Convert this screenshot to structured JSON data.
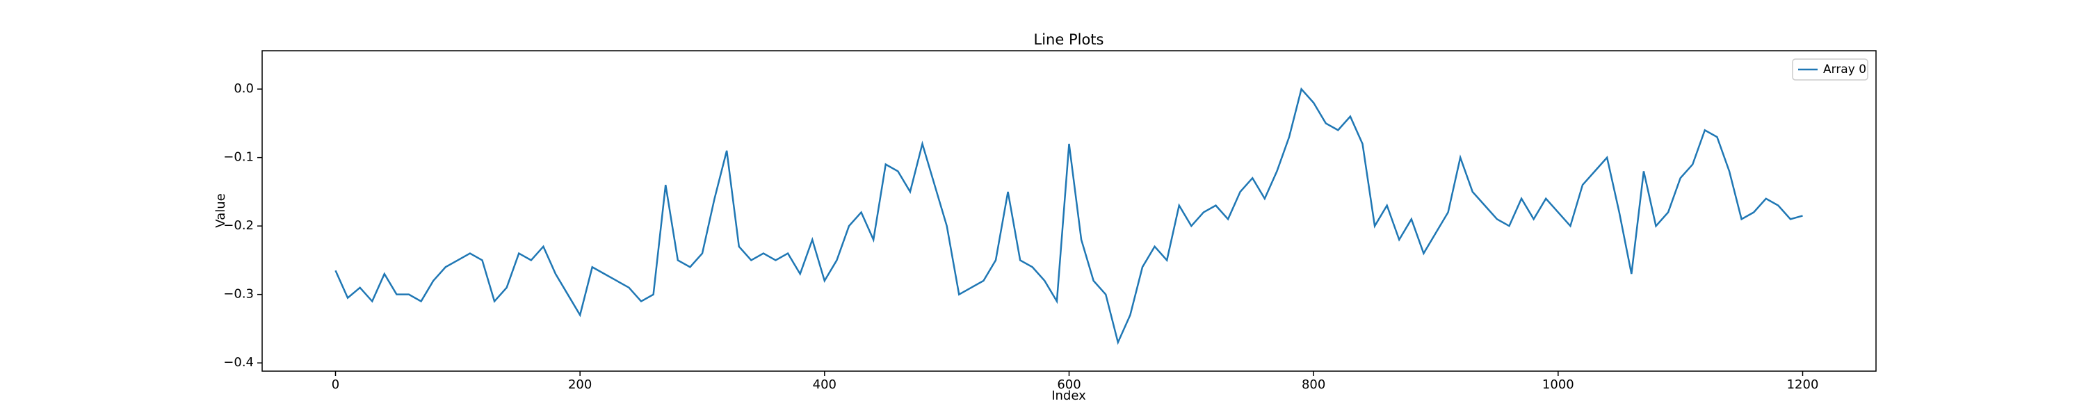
{
  "chart_data": {
    "type": "line",
    "title": "Line Plots",
    "xlabel": "Index",
    "ylabel": "Value",
    "x": [
      0,
      10,
      20,
      30,
      40,
      50,
      60,
      70,
      80,
      90,
      100,
      110,
      120,
      130,
      140,
      150,
      160,
      170,
      180,
      190,
      200,
      210,
      220,
      230,
      240,
      250,
      260,
      270,
      280,
      290,
      300,
      310,
      320,
      330,
      340,
      350,
      360,
      370,
      380,
      390,
      400,
      410,
      420,
      430,
      440,
      450,
      460,
      470,
      480,
      490,
      500,
      510,
      520,
      530,
      540,
      550,
      560,
      570,
      580,
      590,
      600,
      610,
      620,
      630,
      640,
      650,
      660,
      670,
      680,
      690,
      700,
      710,
      720,
      730,
      740,
      750,
      760,
      770,
      780,
      790,
      800,
      810,
      820,
      830,
      840,
      850,
      860,
      870,
      880,
      890,
      900,
      910,
      920,
      930,
      940,
      950,
      960,
      970,
      980,
      990,
      1000,
      1010,
      1020,
      1030,
      1040,
      1050,
      1060,
      1070,
      1080,
      1090,
      1100,
      1110,
      1120,
      1130,
      1140,
      1150,
      1160,
      1170,
      1180,
      1190,
      1200
    ],
    "series": [
      {
        "name": "Array 0",
        "color": "#1f77b4",
        "values": [
          -0.265,
          -0.305,
          -0.29,
          -0.31,
          -0.27,
          -0.3,
          -0.3,
          -0.31,
          -0.28,
          -0.26,
          -0.25,
          -0.24,
          -0.25,
          -0.31,
          -0.29,
          -0.24,
          -0.25,
          -0.23,
          -0.27,
          -0.3,
          -0.33,
          -0.26,
          -0.27,
          -0.28,
          -0.29,
          -0.31,
          -0.3,
          -0.14,
          -0.25,
          -0.26,
          -0.24,
          -0.16,
          -0.09,
          -0.23,
          -0.25,
          -0.24,
          -0.25,
          -0.24,
          -0.27,
          -0.22,
          -0.28,
          -0.25,
          -0.2,
          -0.18,
          -0.22,
          -0.11,
          -0.12,
          -0.15,
          -0.08,
          -0.14,
          -0.2,
          -0.3,
          -0.29,
          -0.28,
          -0.25,
          -0.15,
          -0.25,
          -0.26,
          -0.28,
          -0.31,
          -0.08,
          -0.22,
          -0.28,
          -0.3,
          -0.37,
          -0.33,
          -0.26,
          -0.23,
          -0.25,
          -0.17,
          -0.2,
          -0.18,
          -0.17,
          -0.19,
          -0.15,
          -0.13,
          -0.16,
          -0.12,
          -0.07,
          0.0,
          -0.02,
          -0.05,
          -0.06,
          -0.04,
          -0.08,
          -0.2,
          -0.17,
          -0.22,
          -0.19,
          -0.24,
          -0.21,
          -0.18,
          -0.1,
          -0.15,
          -0.17,
          -0.19,
          -0.2,
          -0.16,
          -0.19,
          -0.16,
          -0.18,
          -0.2,
          -0.14,
          -0.12,
          -0.1,
          -0.18,
          -0.27,
          -0.12,
          -0.2,
          -0.18,
          -0.13,
          -0.11,
          -0.06,
          -0.07,
          -0.12,
          -0.19,
          -0.18,
          -0.16,
          -0.17,
          -0.19,
          -0.185
        ]
      }
    ],
    "xlim": [
      -60,
      1260
    ],
    "xticks": [
      0,
      200,
      400,
      600,
      800,
      1000,
      1200
    ],
    "ylim": [
      -0.412,
      0.056
    ],
    "yticks": [
      {
        "value": -0.4,
        "label": "−0.4"
      },
      {
        "value": -0.3,
        "label": "−0.3"
      },
      {
        "value": -0.2,
        "label": "−0.2"
      },
      {
        "value": -0.1,
        "label": "−0.1"
      },
      {
        "value": 0,
        "label": "0.0"
      }
    ],
    "legend": "upper right",
    "grid": false
  }
}
